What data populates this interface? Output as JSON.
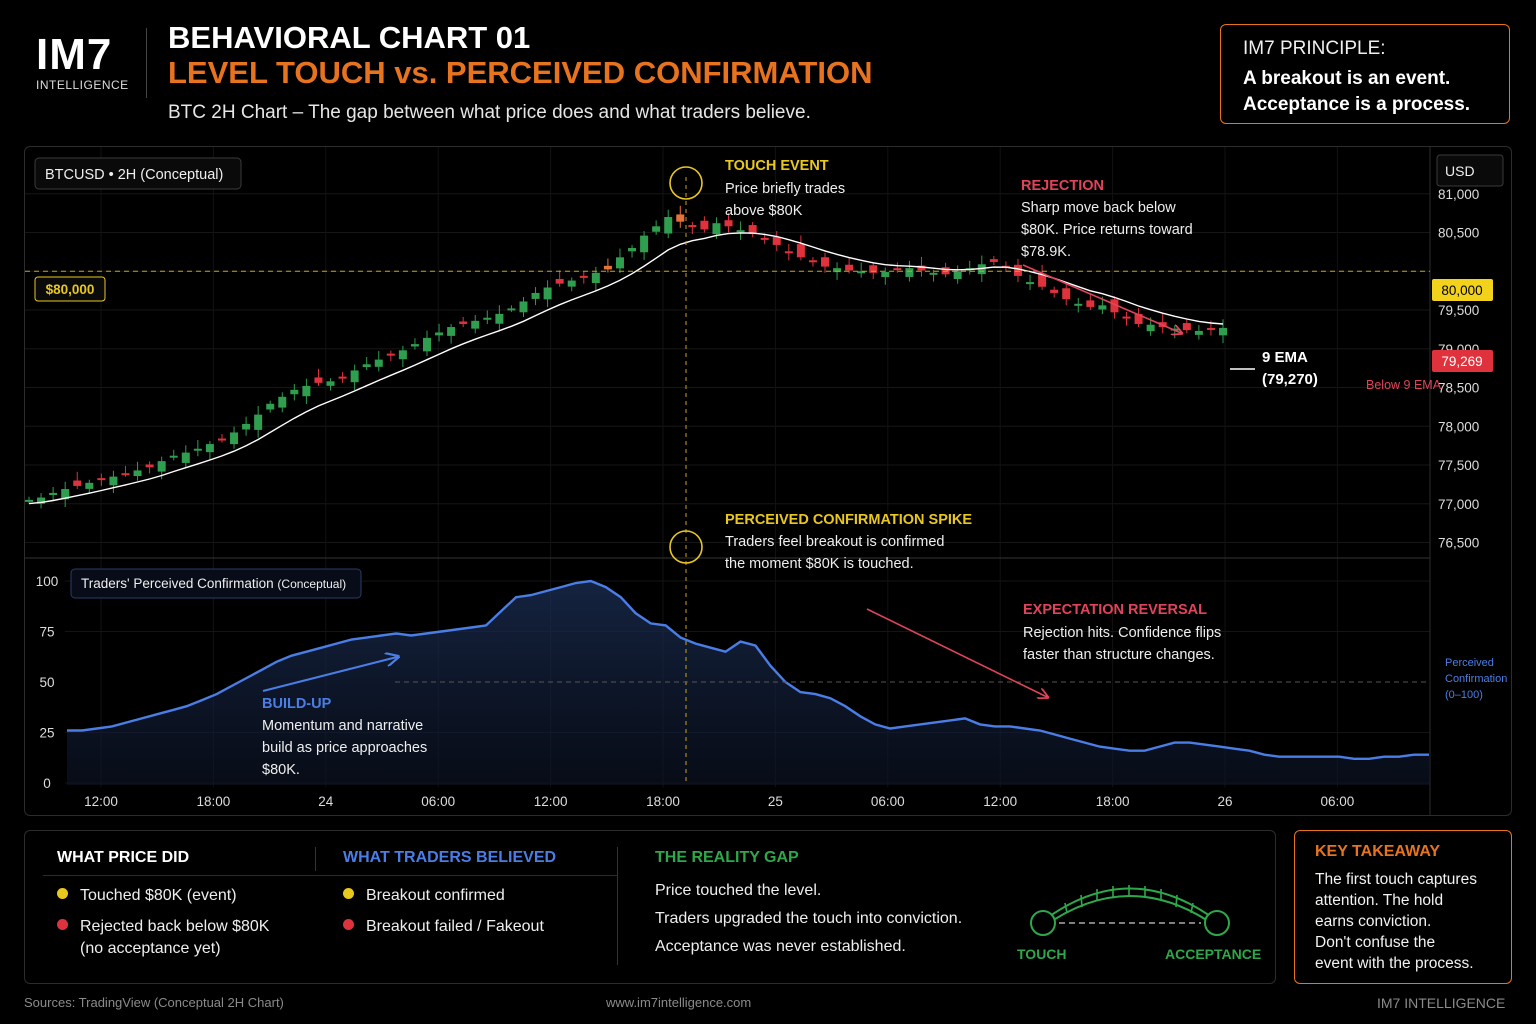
{
  "brand": {
    "logo": "IM7",
    "logo_sub": "INTELLIGENCE"
  },
  "header": {
    "title": "BEHAVIORAL CHART 01",
    "title_accent": "LEVEL TOUCH vs. PERCEIVED CONFIRMATION",
    "subtitle": "BTC 2H Chart – The gap between what price does and what traders believe."
  },
  "principle": {
    "heading": "IM7 PRINCIPLE:",
    "line1": "A breakout is an event.",
    "line2": "Acceptance is a process."
  },
  "colors": {
    "accent_orange": "#e8731f",
    "level_yellow": "#e8c81f",
    "bull_green": "#2f9e4e",
    "bear_red": "#e0323c",
    "confidence_blue": "#4a7ee6",
    "gap_green": "#2ea84a",
    "ema_white": "#ffffff"
  },
  "chart_data": [
    {
      "type": "candlestick",
      "title": "BTCUSD • 2H (Conceptual)",
      "ylabel": "USD",
      "ylim": [
        76300,
        81500
      ],
      "yticks": [
        81000,
        80500,
        80000,
        79500,
        79000,
        78500,
        78000,
        77500,
        77000,
        76500
      ],
      "level": {
        "value": 80000,
        "label": "$80,000",
        "axis_tag": "80,000"
      },
      "last_price": {
        "value": 79269,
        "label": "79,269",
        "note": "Below 9 EMA"
      },
      "ema": {
        "name": "9 EMA",
        "label_value": "(79,270)",
        "last": 79270
      },
      "candle_closes": [
        77050,
        77080,
        77140,
        77190,
        77230,
        77270,
        77310,
        77350,
        77390,
        77430,
        77470,
        77550,
        77620,
        77660,
        77710,
        77770,
        77830,
        77920,
        78030,
        78150,
        78290,
        78380,
        78470,
        78520,
        78560,
        78580,
        78640,
        78720,
        78800,
        78860,
        78920,
        78980,
        79060,
        79140,
        79210,
        79280,
        79320,
        79360,
        79400,
        79450,
        79520,
        79610,
        79720,
        79790,
        79840,
        79880,
        79920,
        79980,
        80070,
        80180,
        80300,
        80460,
        80580,
        80700,
        80640,
        80580,
        80540,
        80620,
        80580,
        80530,
        80480,
        80410,
        80340,
        80240,
        80180,
        80120,
        80060,
        80040,
        80010,
        80000,
        79980,
        79990,
        80020,
        80040,
        80010,
        79980,
        79960,
        80000,
        80040,
        80090,
        80120,
        80050,
        79940,
        79860,
        79800,
        79720,
        79640,
        79580,
        79540,
        79560,
        79470,
        79400,
        79320,
        79310,
        79280,
        79260,
        79240,
        79230,
        79250,
        79269
      ],
      "annotations": [
        {
          "heading": "TOUCH EVENT",
          "line1": "Price briefly trades",
          "line2": "above $80K"
        },
        {
          "heading": "REJECTION",
          "line1": "Sharp move back below",
          "line2": "$80K. Price returns toward",
          "line3": "$78.9K."
        }
      ]
    },
    {
      "type": "area",
      "title": "Traders' Perceived Confirmation",
      "title_note": "(Conceptual)",
      "ylabel": "Perceived Confirmation (0–100)",
      "ylabel_lines": [
        "Perceived",
        "Confirmation",
        "(0–100)"
      ],
      "ylim": [
        0,
        100
      ],
      "yticks": [
        100,
        75,
        50,
        25,
        0
      ],
      "xticks": [
        "12:00",
        "18:00",
        "24",
        "06:00",
        "12:00",
        "18:00",
        "25",
        "06:00",
        "12:00",
        "18:00",
        "26",
        "06:00"
      ],
      "values": [
        26,
        26,
        27,
        28,
        30,
        32,
        34,
        36,
        38,
        41,
        44,
        48,
        52,
        56,
        60,
        63,
        65,
        67,
        69,
        71,
        72,
        73,
        74,
        73,
        74,
        75,
        76,
        77,
        78,
        85,
        92,
        93,
        95,
        97,
        99,
        100,
        97,
        92,
        84,
        79,
        78,
        72,
        69,
        67,
        65,
        70,
        68,
        58,
        50,
        45,
        44,
        42,
        38,
        33,
        29,
        27,
        28,
        29,
        30,
        31,
        32,
        29,
        28,
        28,
        27,
        26,
        24,
        22,
        20,
        18,
        17,
        16,
        16,
        18,
        20,
        20,
        19,
        18,
        17,
        16,
        14,
        13,
        13,
        13,
        13,
        13,
        12,
        12,
        13,
        13,
        14,
        14
      ],
      "annotations": [
        {
          "heading": "PERCEIVED CONFIRMATION SPIKE",
          "line1": "Traders feel breakout is confirmed",
          "line2": "the moment $80K is touched."
        },
        {
          "heading": "BUILD-UP",
          "line1": "Momentum and narrative",
          "line2": "build as price approaches",
          "line3": "$80K."
        },
        {
          "heading": "EXPECTATION REVERSAL",
          "line1": "Rejection hits. Confidence flips",
          "line2": "faster than structure changes."
        }
      ]
    }
  ],
  "summary": {
    "price": {
      "heading": "WHAT PRICE DID",
      "items": [
        "Touched $80K (event)",
        "Rejected back below $80K",
        "(no acceptance yet)"
      ]
    },
    "traders": {
      "heading": "WHAT TRADERS BELIEVED",
      "items": [
        "Breakout confirmed",
        "Breakout failed / Fakeout"
      ]
    },
    "gap": {
      "heading": "THE REALITY GAP",
      "items": [
        "Price touched the level.",
        "Traders upgraded the touch into conviction.",
        "Acceptance was never established."
      ],
      "left_label": "TOUCH",
      "right_label": "ACCEPTANCE"
    }
  },
  "takeaway": {
    "heading": "KEY TAKEAWAY",
    "lines": [
      "The first touch captures",
      "attention. The hold",
      "earns conviction.",
      "Don't confuse the",
      "event with the process."
    ]
  },
  "footer": {
    "source": "Sources: TradingView (Conceptual 2H Chart)",
    "url": "www.im7intelligence.com",
    "brand": "IM7 INTELLIGENCE"
  }
}
